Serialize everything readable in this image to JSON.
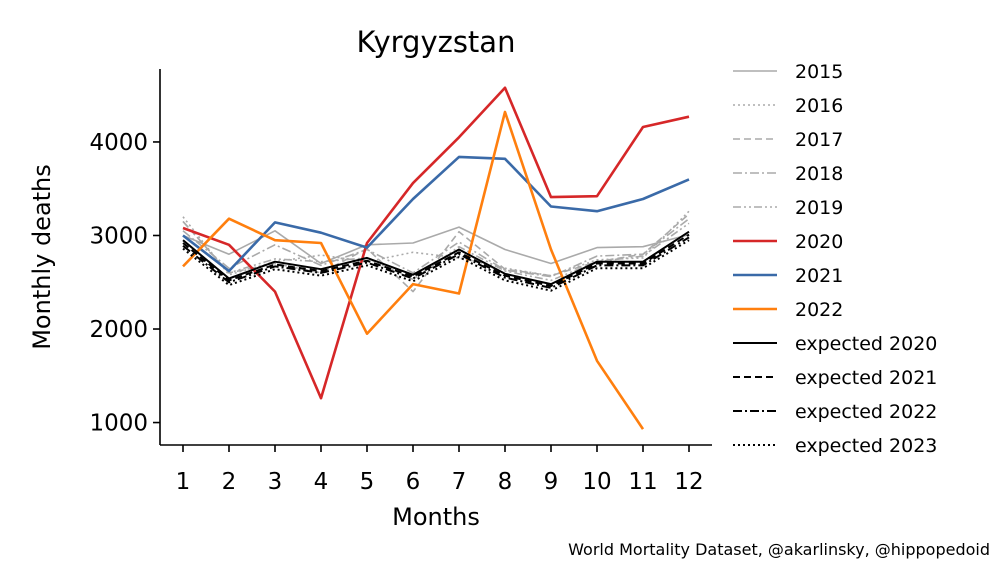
{
  "chart_data": {
    "type": "line",
    "title": "Kyrgyzstan",
    "xlabel": "Months",
    "ylabel": "Monthly deaths",
    "x": [
      1,
      2,
      3,
      4,
      5,
      6,
      7,
      8,
      9,
      10,
      11,
      12
    ],
    "xticks": [
      "1",
      "2",
      "3",
      "4",
      "5",
      "6",
      "7",
      "8",
      "9",
      "10",
      "11",
      "12"
    ],
    "yticks": [
      1000,
      2000,
      3000,
      4000
    ],
    "xlim": [
      0.5,
      12.5
    ],
    "ylim": [
      760,
      4780
    ],
    "grid": false,
    "legend_position": "right, outside plot",
    "series": [
      {
        "name": "2015",
        "color": "#aaaaaa",
        "dash": "solid",
        "width": 1.6,
        "values": [
          3000,
          2800,
          3050,
          2700,
          2900,
          2920,
          3090,
          2850,
          2700,
          2870,
          2880,
          3010
        ]
      },
      {
        "name": "2016",
        "color": "#aaaaaa",
        "dash": "dotted",
        "width": 1.6,
        "values": [
          3200,
          2580,
          2720,
          2790,
          2720,
          2820,
          2760,
          2650,
          2570,
          2740,
          2760,
          3260
        ]
      },
      {
        "name": "2017",
        "color": "#aaaaaa",
        "dash": "dashed",
        "width": 1.6,
        "values": [
          3150,
          2600,
          2700,
          2600,
          2860,
          2400,
          3040,
          2640,
          2570,
          2720,
          2800,
          3230
        ]
      },
      {
        "name": "2018",
        "color": "#aaaaaa",
        "dash": "dashdot",
        "width": 1.6,
        "values": [
          3050,
          2650,
          2900,
          2680,
          2850,
          2600,
          2930,
          2630,
          2560,
          2780,
          2800,
          3180
        ]
      },
      {
        "name": "2019",
        "color": "#aaaaaa",
        "dash": "dashdotdot",
        "width": 1.6,
        "values": [
          3150,
          2600,
          2750,
          2720,
          2760,
          2530,
          2880,
          2620,
          2520,
          2720,
          2780,
          3130
        ]
      },
      {
        "name": "2020",
        "color": "#d62728",
        "dash": "solid",
        "width": 2.6,
        "values": [
          3080,
          2900,
          2400,
          1260,
          2920,
          3560,
          4050,
          4580,
          3410,
          3420,
          4160,
          4270
        ]
      },
      {
        "name": "2021",
        "color": "#3a6aa8",
        "dash": "solid",
        "width": 2.6,
        "values": [
          3000,
          2620,
          3140,
          3030,
          2870,
          3390,
          3840,
          3820,
          3310,
          3260,
          3390,
          3600
        ]
      },
      {
        "name": "2022",
        "color": "#ff7f0e",
        "dash": "solid",
        "width": 2.6,
        "values": [
          2670,
          3180,
          2950,
          2920,
          1950,
          2480,
          2380,
          4320,
          2850,
          1660,
          930,
          null
        ]
      },
      {
        "name": "expected 2020",
        "color": "#000000",
        "dash": "solid",
        "width": 2,
        "values": [
          2950,
          2540,
          2720,
          2640,
          2760,
          2580,
          2850,
          2590,
          2480,
          2720,
          2720,
          3040
        ]
      },
      {
        "name": "expected 2021",
        "color": "#000000",
        "dash": "dashed",
        "width": 2,
        "values": [
          2920,
          2520,
          2690,
          2620,
          2730,
          2560,
          2820,
          2570,
          2460,
          2700,
          2700,
          3010
        ]
      },
      {
        "name": "expected 2022",
        "color": "#000000",
        "dash": "dashdot",
        "width": 2,
        "values": [
          2890,
          2500,
          2670,
          2600,
          2710,
          2540,
          2800,
          2550,
          2440,
          2680,
          2680,
          2980
        ]
      },
      {
        "name": "expected 2023",
        "color": "#000000",
        "dash": "dotted",
        "width": 2,
        "values": [
          2860,
          2470,
          2640,
          2570,
          2680,
          2510,
          2770,
          2520,
          2410,
          2650,
          2650,
          2950
        ]
      }
    ],
    "annotations": [
      "World Mortality Dataset, @akarlinsky, @hippopedoid"
    ]
  }
}
